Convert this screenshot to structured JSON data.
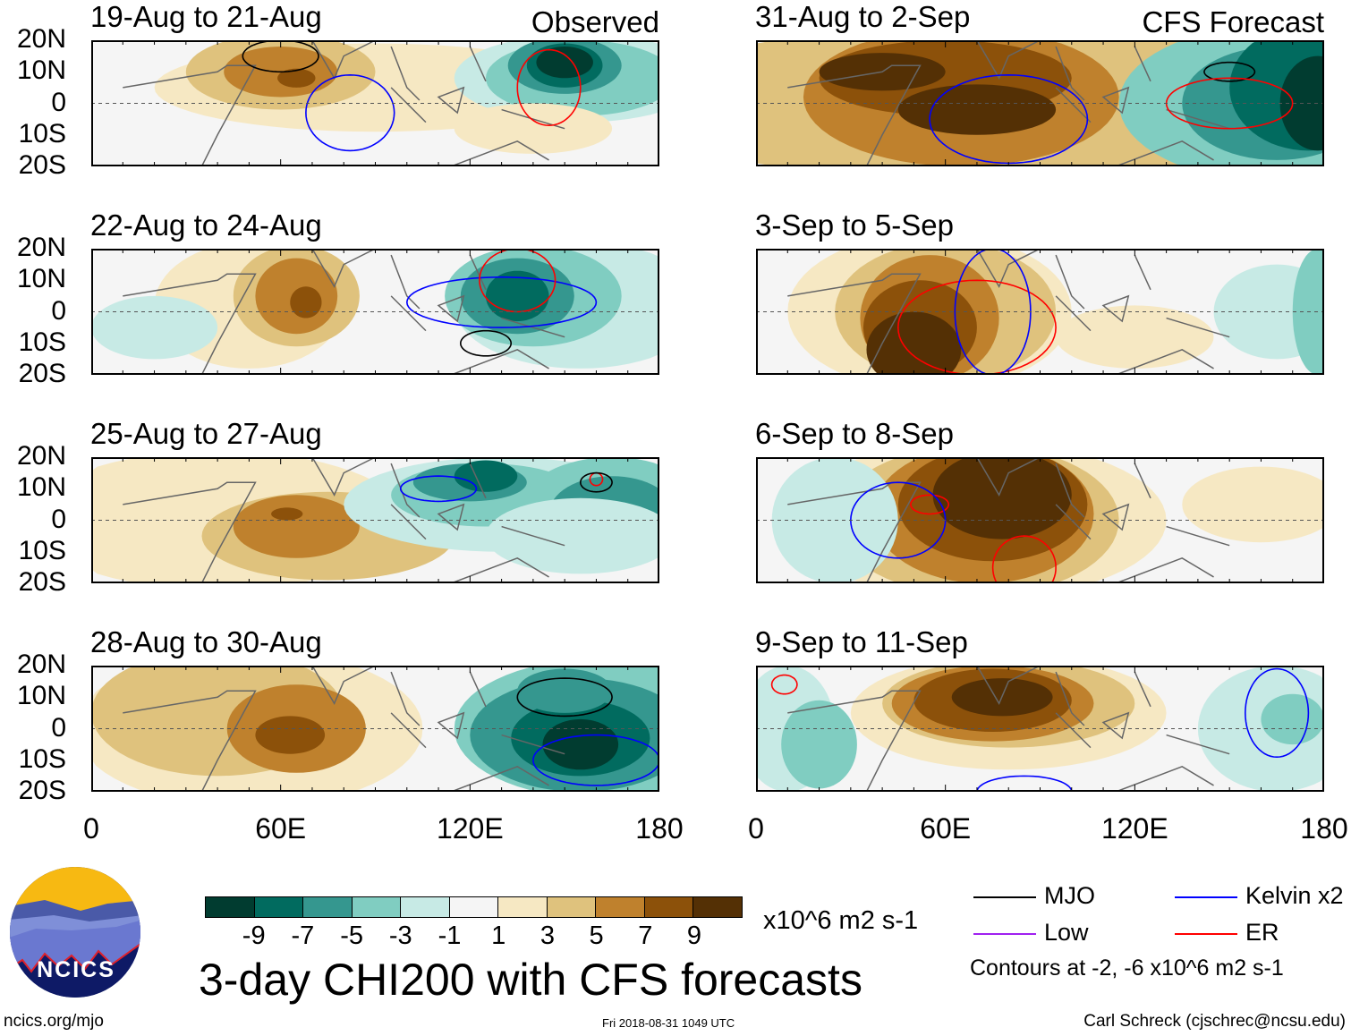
{
  "panels": [
    {
      "title": "19-Aug to 21-Aug",
      "tag": "Observed"
    },
    {
      "title": "22-Aug to 24-Aug"
    },
    {
      "title": "25-Aug to 27-Aug"
    },
    {
      "title": "28-Aug to 30-Aug"
    },
    {
      "title": "31-Aug to 2-Sep",
      "tag": "CFS Forecast"
    },
    {
      "title": "3-Sep to 5-Sep"
    },
    {
      "title": "6-Sep to 8-Sep"
    },
    {
      "title": "9-Sep to 11-Sep"
    }
  ],
  "lat_labels": [
    "20N",
    "10N",
    "0",
    "10S",
    "20S"
  ],
  "lon_labels": [
    "0",
    "60E",
    "120E",
    "180"
  ],
  "colorbar": {
    "colors": [
      "#013c30",
      "#016b5f",
      "#35978f",
      "#80cdc1",
      "#c7eae5",
      "#f5f5f5",
      "#f6e8c3",
      "#dfc27d",
      "#bf812d",
      "#8c510a",
      "#543005"
    ],
    "labels": [
      "-9",
      "-7",
      "-5",
      "-3",
      "-1",
      "1",
      "3",
      "5",
      "7",
      "9"
    ],
    "units": "x10^6 m2 s-1"
  },
  "title": "3-day CHI200 with CFS forecasts",
  "legend": {
    "items": [
      {
        "label": "MJO",
        "color": "#000000"
      },
      {
        "label": "Kelvin x2",
        "color": "#0000ff"
      },
      {
        "label": "Low",
        "color": "#a020f0"
      },
      {
        "label": "ER",
        "color": "#ff0000"
      }
    ],
    "note": "Contours at -2, -6 x10^6 m2 s-1"
  },
  "logo_text": "NCICS",
  "footer": {
    "url": "ncics.org/mjo",
    "timestamp": "Fri 2018-08-31 1049 UTC",
    "credit": "Carl Schreck (cjschrec@ncsu.edu)"
  }
}
